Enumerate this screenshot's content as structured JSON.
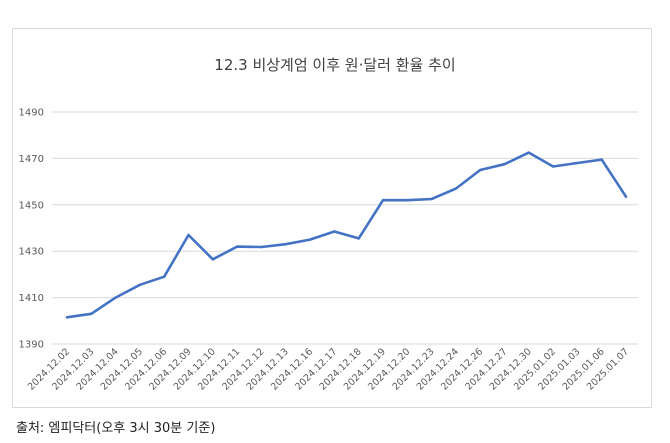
{
  "chart_data": {
    "type": "line",
    "title": "12.3 비상계엄 이후 원·달러 환율 추이",
    "xlabel": "",
    "ylabel": "",
    "ylim": [
      1390,
      1490
    ],
    "yticks": [
      1390,
      1410,
      1430,
      1450,
      1470,
      1490
    ],
    "grid": true,
    "legend": "none",
    "categories": [
      "2024.12.02",
      "2024.12.03",
      "2024.12.04",
      "2024.12.05",
      "2024.12.06",
      "2024.12.09",
      "2024.12.10",
      "2024.12.11",
      "2024.12.12",
      "2024.12.13",
      "2024.12.16",
      "2024.12.17",
      "2024.12.18",
      "2024.12.19",
      "2024.12.20",
      "2024.12.23",
      "2024.12.24",
      "2024.12.26",
      "2024.12.27",
      "2024.12.30",
      "2025.01.02",
      "2025.01.03",
      "2025.01.06",
      "2025.01.07"
    ],
    "values": [
      1401.5,
      1403.0,
      1410.0,
      1415.5,
      1419.0,
      1437.0,
      1426.5,
      1432.0,
      1431.8,
      1433.0,
      1435.0,
      1438.5,
      1435.5,
      1452.0,
      1452.0,
      1452.5,
      1457.0,
      1465.0,
      1467.5,
      1472.5,
      1466.5,
      1468.0,
      1469.5,
      1453.5
    ],
    "line_color": "#4472c4"
  },
  "source": "출처: 엠피닥터(오후 3시 30분 기준)"
}
